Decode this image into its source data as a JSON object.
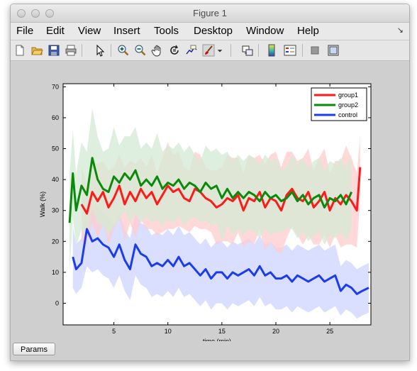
{
  "window": {
    "title": "Figure 1"
  },
  "menu": [
    "File",
    "Edit",
    "View",
    "Insert",
    "Tools",
    "Desktop",
    "Window",
    "Help"
  ],
  "toolbar_icons": [
    "new-figure-icon",
    "open-file-icon",
    "save-icon",
    "print-icon",
    "pointer-icon",
    "zoom-in-icon",
    "zoom-out-icon",
    "pan-hand-icon",
    "rotate-3d-icon",
    "data-cursor-icon",
    "brush-icon",
    "link-plot-icon",
    "colorbar-icon",
    "legend-icon",
    "hide-plot-tools-icon",
    "show-plot-tools-icon"
  ],
  "params_button": "Params",
  "colors": {
    "group1": "#ff1a1a",
    "group2": "#0a8a0a",
    "control": "#1a3cf0",
    "group1_band": "#ffcccc",
    "group2_band": "#d4ead4",
    "control_band": "#cdd3ff"
  },
  "chart_data": {
    "type": "line",
    "xlabel": "time (min)",
    "ylabel": "Walk (%)",
    "xlim": [
      0.3,
      28.8
    ],
    "ylim": [
      -7,
      71
    ],
    "x_ticks": [
      5,
      10,
      15,
      20,
      25
    ],
    "y_ticks": [
      0,
      10,
      20,
      30,
      40,
      50,
      60,
      70
    ],
    "legend_position": "top-right",
    "series": [
      {
        "name": "group1",
        "x": [
          2,
          2.5,
          3,
          3.5,
          4,
          4.5,
          5,
          5.5,
          6,
          6.5,
          7,
          7.5,
          8,
          8.5,
          9,
          9.5,
          10,
          10.5,
          11,
          11.5,
          12,
          12.5,
          13,
          13.5,
          14,
          14.5,
          15,
          15.5,
          16,
          16.5,
          17,
          17.5,
          18,
          18.5,
          19,
          19.5,
          20,
          20.5,
          21,
          21.5,
          22,
          22.5,
          23,
          23.5,
          24,
          24.5,
          25,
          25.5,
          26,
          26.5,
          27,
          27.5,
          27.8
        ],
        "y": [
          32,
          29,
          36,
          33,
          36,
          31,
          34,
          38,
          32,
          36,
          33,
          37,
          34,
          36,
          32,
          35,
          38,
          36,
          37,
          34,
          33,
          37,
          36,
          34,
          33,
          31,
          32,
          34,
          33,
          35,
          30,
          34,
          33,
          36,
          31,
          34,
          33,
          30,
          35,
          37,
          34,
          33,
          36,
          31,
          33,
          36,
          30,
          34,
          32,
          35,
          33,
          30,
          44
        ],
        "band": [
          12,
          10,
          10,
          12,
          10,
          12,
          10,
          10,
          12,
          10,
          12,
          10,
          10,
          12,
          10,
          12,
          14,
          12,
          12,
          10,
          10,
          12,
          12,
          10,
          10,
          12,
          12,
          14,
          14,
          12,
          12,
          14,
          14,
          12,
          14,
          14,
          16,
          14,
          14,
          12,
          12,
          14,
          14,
          12,
          14,
          14,
          12,
          12,
          14,
          16,
          14,
          12,
          10
        ]
      },
      {
        "name": "group2",
        "x": [
          0.9,
          1.2,
          1.5,
          2,
          2.5,
          3,
          3.5,
          4,
          4.5,
          5,
          5.5,
          6,
          6.5,
          7,
          7.5,
          8,
          8.5,
          9,
          9.5,
          10,
          10.5,
          11,
          11.5,
          12,
          12.5,
          13,
          13.5,
          14,
          14.5,
          15,
          15.5,
          16,
          16.5,
          17,
          17.5,
          18,
          18.5,
          19,
          19.5,
          20,
          20.5,
          21,
          21.5,
          22,
          22.5,
          23,
          23.5,
          24,
          24.5,
          25,
          25.5,
          26,
          26.5,
          27
        ],
        "y": [
          26,
          42,
          30,
          38,
          35,
          47,
          40,
          37,
          36,
          41,
          39,
          42,
          40,
          43,
          38,
          40,
          38,
          41,
          37,
          39,
          38,
          40,
          37,
          39,
          38,
          36,
          39,
          37,
          38,
          34,
          37,
          34,
          36,
          34,
          36,
          35,
          33,
          36,
          34,
          35,
          33,
          34,
          36,
          33,
          35,
          32,
          34,
          35,
          31,
          34,
          33,
          35,
          32,
          36
        ],
        "band": [
          16,
          14,
          12,
          14,
          14,
          16,
          14,
          12,
          14,
          16,
          12,
          12,
          14,
          14,
          12,
          12,
          12,
          14,
          12,
          12,
          12,
          12,
          12,
          12,
          10,
          10,
          12,
          12,
          12,
          14,
          12,
          12,
          12,
          12,
          12,
          12,
          12,
          12,
          12,
          12,
          10,
          10,
          12,
          12,
          12,
          12,
          12,
          12,
          12,
          12,
          12,
          12,
          12,
          12
        ]
      },
      {
        "name": "control",
        "x": [
          1.2,
          1.5,
          2,
          2.5,
          3,
          3.5,
          4,
          4.5,
          5,
          5.5,
          6,
          6.5,
          7,
          7.5,
          8,
          8.5,
          9,
          9.5,
          10,
          10.5,
          11,
          11.5,
          12,
          12.5,
          13,
          13.5,
          14,
          14.5,
          15,
          15.5,
          16,
          16.5,
          17,
          17.5,
          18,
          18.5,
          19,
          19.5,
          20,
          20.5,
          21,
          21.5,
          22,
          22.5,
          23,
          23.5,
          24,
          24.5,
          25,
          25.5,
          26,
          26.5,
          27,
          27.5,
          28,
          28.6
        ],
        "y": [
          15,
          11,
          13,
          24,
          20,
          21,
          19,
          18,
          15,
          19,
          14,
          11,
          19,
          16,
          15,
          12,
          13,
          12,
          14,
          12,
          15,
          12,
          13,
          11,
          9,
          11,
          8,
          10,
          10,
          8,
          10,
          9,
          10,
          11,
          9,
          12,
          9,
          10,
          8,
          8,
          9,
          7,
          9,
          8,
          7,
          8,
          9,
          7,
          8,
          9,
          4,
          6,
          5,
          3,
          4,
          5
        ],
        "band": [
          10,
          8,
          8,
          12,
          10,
          10,
          10,
          10,
          10,
          10,
          10,
          10,
          10,
          10,
          10,
          10,
          10,
          10,
          10,
          10,
          10,
          10,
          10,
          10,
          10,
          10,
          10,
          10,
          10,
          10,
          10,
          10,
          10,
          10,
          10,
          10,
          10,
          10,
          10,
          10,
          10,
          10,
          10,
          10,
          10,
          10,
          10,
          10,
          10,
          10,
          8,
          8,
          8,
          8,
          8,
          8
        ]
      }
    ]
  }
}
